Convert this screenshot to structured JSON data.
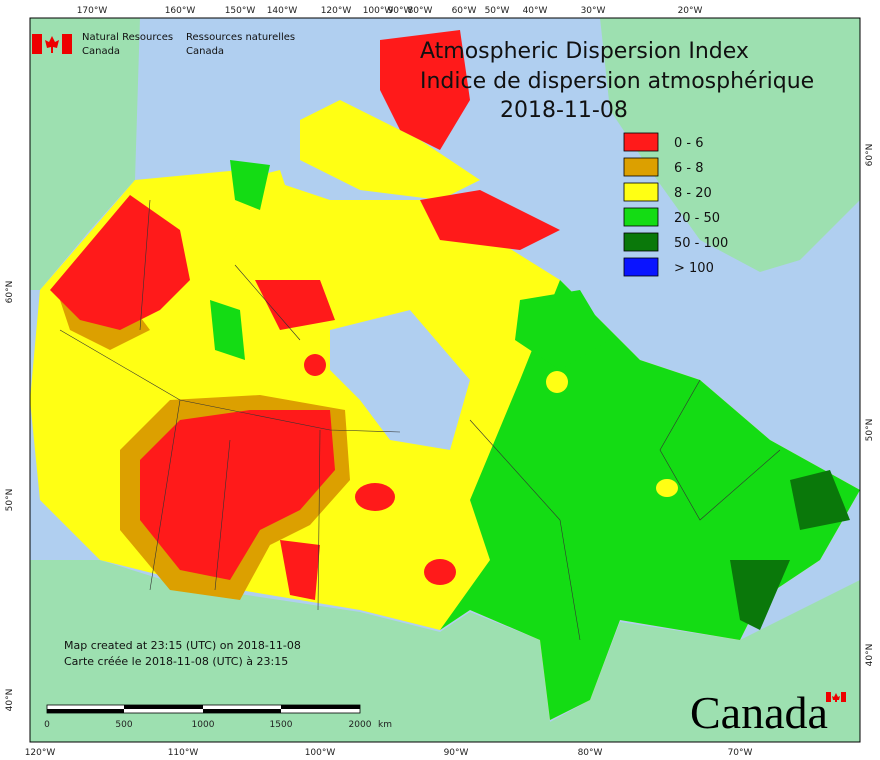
{
  "header": {
    "agency_en": "Natural Resources",
    "agency_en_2": "Canada",
    "agency_fr": "Ressources naturelles",
    "agency_fr_2": "Canada"
  },
  "title": {
    "line1": "Atmospheric Dispersion Index",
    "line2": "Indice de dispersion atmosphérique",
    "date": "2018-11-08"
  },
  "legend": [
    {
      "label": "0 - 6",
      "color": "#ff1a1a"
    },
    {
      "label": "6 - 8",
      "color": "#dca000"
    },
    {
      "label": "8 - 20",
      "color": "#ffff14"
    },
    {
      "label": "20 - 50",
      "color": "#14dc14"
    },
    {
      "label": "50 - 100",
      "color": "#0a780a"
    },
    {
      "label": "> 100",
      "color": "#0a14ff"
    }
  ],
  "graticule": {
    "top": [
      "170°W",
      "160°W",
      "150°W",
      "140°W",
      "120°W",
      "100°W",
      "90°W",
      "80°W",
      "60°W",
      "50°W",
      "40°W",
      "30°W",
      "20°W"
    ],
    "bottom": [
      "120°W",
      "110°W",
      "100°W",
      "90°W",
      "80°W",
      "70°W"
    ],
    "left": [
      "60°N",
      "50°N",
      "40°N"
    ],
    "right": [
      "60°N",
      "50°N",
      "40°N"
    ]
  },
  "footer": {
    "created_en": "Map created at 23:15 (UTC) on 2018-11-08",
    "created_fr": "Carte créée le 2018-11-08 (UTC) à 23:15"
  },
  "scale_bar": {
    "labels": [
      "0",
      "500",
      "1000",
      "1500",
      "2000"
    ],
    "unit": "km"
  },
  "wordmark": "Canada"
}
